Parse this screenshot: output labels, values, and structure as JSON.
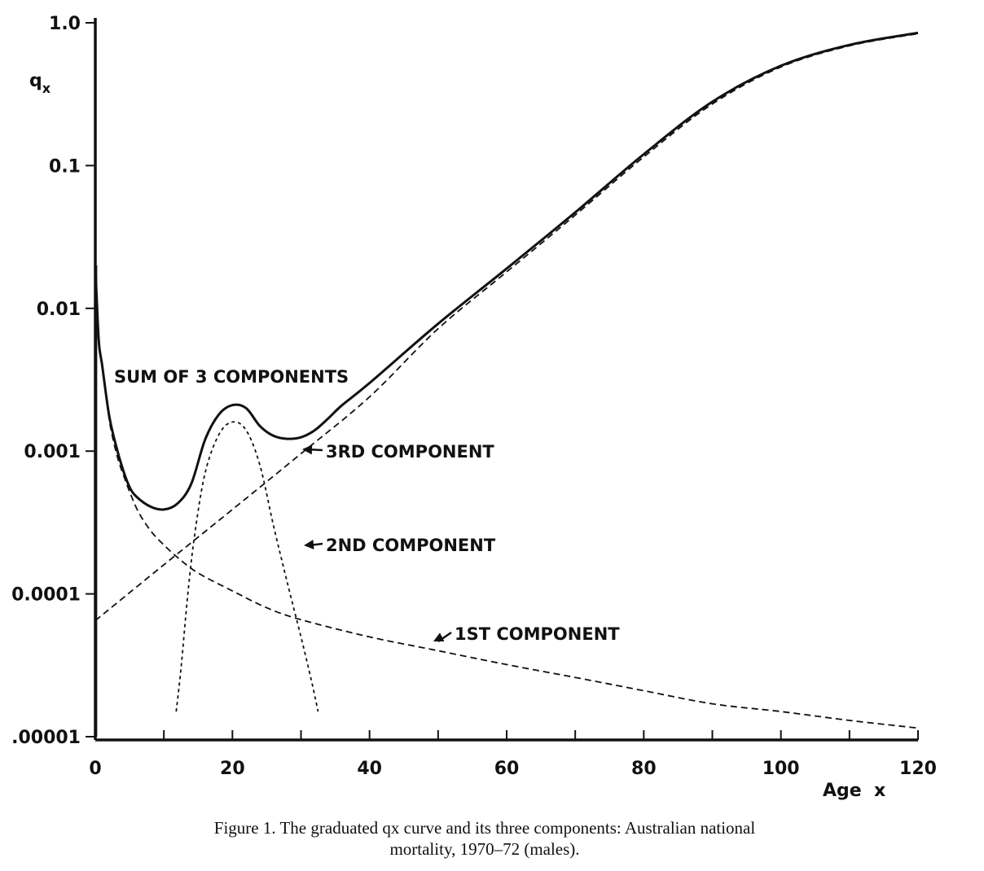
{
  "chart_data": {
    "type": "line",
    "xlabel": "Age  x",
    "ylabel": "q",
    "ylabel_sub": "x",
    "xlim": [
      0,
      120
    ],
    "ylim": [
      1e-05,
      1.0
    ],
    "yscale": "log",
    "xticks": [
      0,
      20,
      40,
      60,
      80,
      100,
      120
    ],
    "xtick_labels": [
      "0",
      "20",
      "40",
      "60",
      "80",
      "100",
      "120"
    ],
    "yticks": [
      1e-05,
      0.0001,
      0.001,
      0.01,
      0.1,
      1.0
    ],
    "ytick_labels": [
      ".00001",
      "0.0001",
      "0.001",
      "0.01",
      "0.1",
      "1.0"
    ],
    "grid": false,
    "series": [
      {
        "name": "SUM OF 3 COMPONENTS",
        "style": "solid",
        "x": [
          0,
          0.5,
          1,
          2,
          3,
          4,
          5,
          6,
          8,
          10,
          12,
          14,
          16,
          18,
          20,
          22,
          24,
          26,
          28,
          30,
          32,
          34,
          36,
          40,
          50,
          60,
          70,
          80,
          90,
          100,
          110,
          120
        ],
        "y": [
          0.02,
          0.006,
          0.004,
          0.0018,
          0.0011,
          0.00075,
          0.00056,
          0.00048,
          0.00041,
          0.00039,
          0.00043,
          0.00059,
          0.0012,
          0.0018,
          0.0021,
          0.002,
          0.0015,
          0.00128,
          0.00122,
          0.00125,
          0.0014,
          0.0017,
          0.0021,
          0.003,
          0.0078,
          0.019,
          0.047,
          0.12,
          0.28,
          0.5,
          0.7,
          0.85
        ]
      },
      {
        "name": "1ST COMPONENT",
        "style": "dashed",
        "x": [
          0.5,
          1,
          2,
          3,
          4,
          6,
          8,
          10,
          12,
          15,
          20,
          25,
          30,
          40,
          50,
          60,
          70,
          80,
          90,
          100,
          110,
          120
        ],
        "y": [
          0.006,
          0.004,
          0.0017,
          0.001,
          0.0007,
          0.0004,
          0.00028,
          0.00022,
          0.00018,
          0.00014,
          0.000105,
          8e-05,
          6.6e-05,
          5e-05,
          4e-05,
          3.2e-05,
          2.6e-05,
          2.1e-05,
          1.7e-05,
          1.5e-05,
          1.3e-05,
          1.15e-05
        ]
      },
      {
        "name": "2ND COMPONENT",
        "style": "dotted",
        "x": [
          11.8,
          12.5,
          13.5,
          14.5,
          16,
          18,
          20,
          22,
          24,
          26,
          28,
          30,
          31.5,
          32.5
        ],
        "y": [
          1.5e-05,
          3e-05,
          0.0001,
          0.00026,
          0.0007,
          0.0013,
          0.0016,
          0.0014,
          0.0008,
          0.0003,
          0.00012,
          5e-05,
          2.5e-05,
          1.5e-05
        ]
      },
      {
        "name": "3RD COMPONENT",
        "style": "dashed",
        "x": [
          0,
          10,
          20,
          30,
          40,
          50,
          60,
          70,
          80,
          90,
          100,
          110,
          120
        ],
        "y": [
          6.5e-05,
          0.00016,
          0.00039,
          0.00096,
          0.0024,
          0.0072,
          0.018,
          0.045,
          0.115,
          0.27,
          0.49,
          0.69,
          0.84
        ]
      }
    ],
    "annotations": [
      {
        "text": "SUM OF 3 COMPONENTS"
      },
      {
        "text": "3RD COMPONENT"
      },
      {
        "text": "2ND COMPONENT"
      },
      {
        "text": "1ST  COMPONENT"
      }
    ]
  },
  "caption": {
    "line1": "Figure 1. The graduated qx curve and its three components: Australian national",
    "line2": "mortality, 1970–72 (males)."
  }
}
